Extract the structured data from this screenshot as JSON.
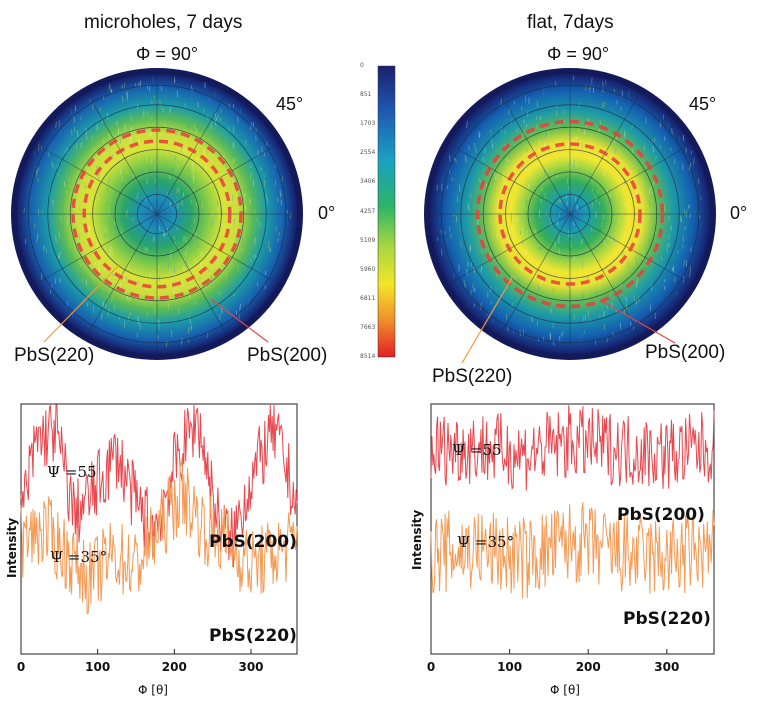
{
  "chart_data": [
    {
      "type": "heatmap",
      "subtype": "polar pole figure",
      "title": "microholes, 7 days",
      "top_angle_label": "Φ = 90°",
      "angle_45_label": "45°",
      "angle_0_label": "0°",
      "annotations": [
        "PbS(220)",
        "PbS(200)"
      ],
      "colormap": "blue to green to yellow to red",
      "high_intensity_ring": "broad green-yellow ring with intermittent red arcs"
    },
    {
      "type": "heatmap",
      "subtype": "polar pole figure",
      "title": "flat, 7days",
      "top_angle_label": "Φ = 90°",
      "angle_45_label": "45°",
      "angle_0_label": "0°",
      "annotations": [
        "PbS(220)",
        "PbS(200)"
      ],
      "colormap": "blue to green to yellow to red",
      "high_intensity_ring": "narrower yellow ring surrounded by red dashed arcs"
    },
    {
      "type": "line",
      "xlabel": "Φ [θ]",
      "ylabel": "Intensity",
      "xticks": [
        0,
        100,
        200,
        300
      ],
      "xlim": [
        0,
        360
      ],
      "series": [
        {
          "name": "PbS(200)",
          "psi": "Ψ =55",
          "color": "#e8474e",
          "x": [
            0,
            20,
            45,
            70,
            95,
            125,
            150,
            175,
            200,
            230,
            255,
            275,
            300,
            330,
            360
          ],
          "values": [
            0.55,
            0.85,
            0.9,
            0.55,
            0.65,
            0.8,
            0.6,
            0.5,
            0.75,
            0.95,
            0.55,
            0.45,
            0.7,
            0.9,
            0.6
          ]
        },
        {
          "name": "PbS(220)",
          "psi": "Ψ =35°",
          "color": "#f49a55",
          "x": [
            0,
            30,
            60,
            90,
            120,
            150,
            180,
            210,
            240,
            270,
            300,
            330,
            360
          ],
          "values": [
            0.45,
            0.5,
            0.4,
            0.3,
            0.4,
            0.35,
            0.5,
            0.65,
            0.5,
            0.45,
            0.35,
            0.4,
            0.45
          ]
        }
      ]
    },
    {
      "type": "line",
      "xlabel": "Φ [θ]",
      "ylabel": "Intensity",
      "xticks": [
        0,
        100,
        200,
        300
      ],
      "xlim": [
        0,
        360
      ],
      "series": [
        {
          "name": "PbS(200)",
          "psi": "Ψ =55",
          "color": "#e8474e",
          "x": [
            0,
            60,
            120,
            180,
            240,
            300,
            360
          ],
          "values": [
            0.82,
            0.83,
            0.8,
            0.85,
            0.82,
            0.8,
            0.83
          ]
        },
        {
          "name": "PbS(220)",
          "psi": "Ψ =35°",
          "color": "#f49a55",
          "x": [
            0,
            60,
            120,
            180,
            240,
            300,
            360
          ],
          "values": [
            0.4,
            0.42,
            0.38,
            0.45,
            0.4,
            0.38,
            0.42
          ]
        }
      ]
    }
  ],
  "colorbar": {
    "ticks": [
      "0",
      "851",
      "1703",
      "2554",
      "3406",
      "4257",
      "5109",
      "5960",
      "6811",
      "7663",
      "8514"
    ]
  }
}
